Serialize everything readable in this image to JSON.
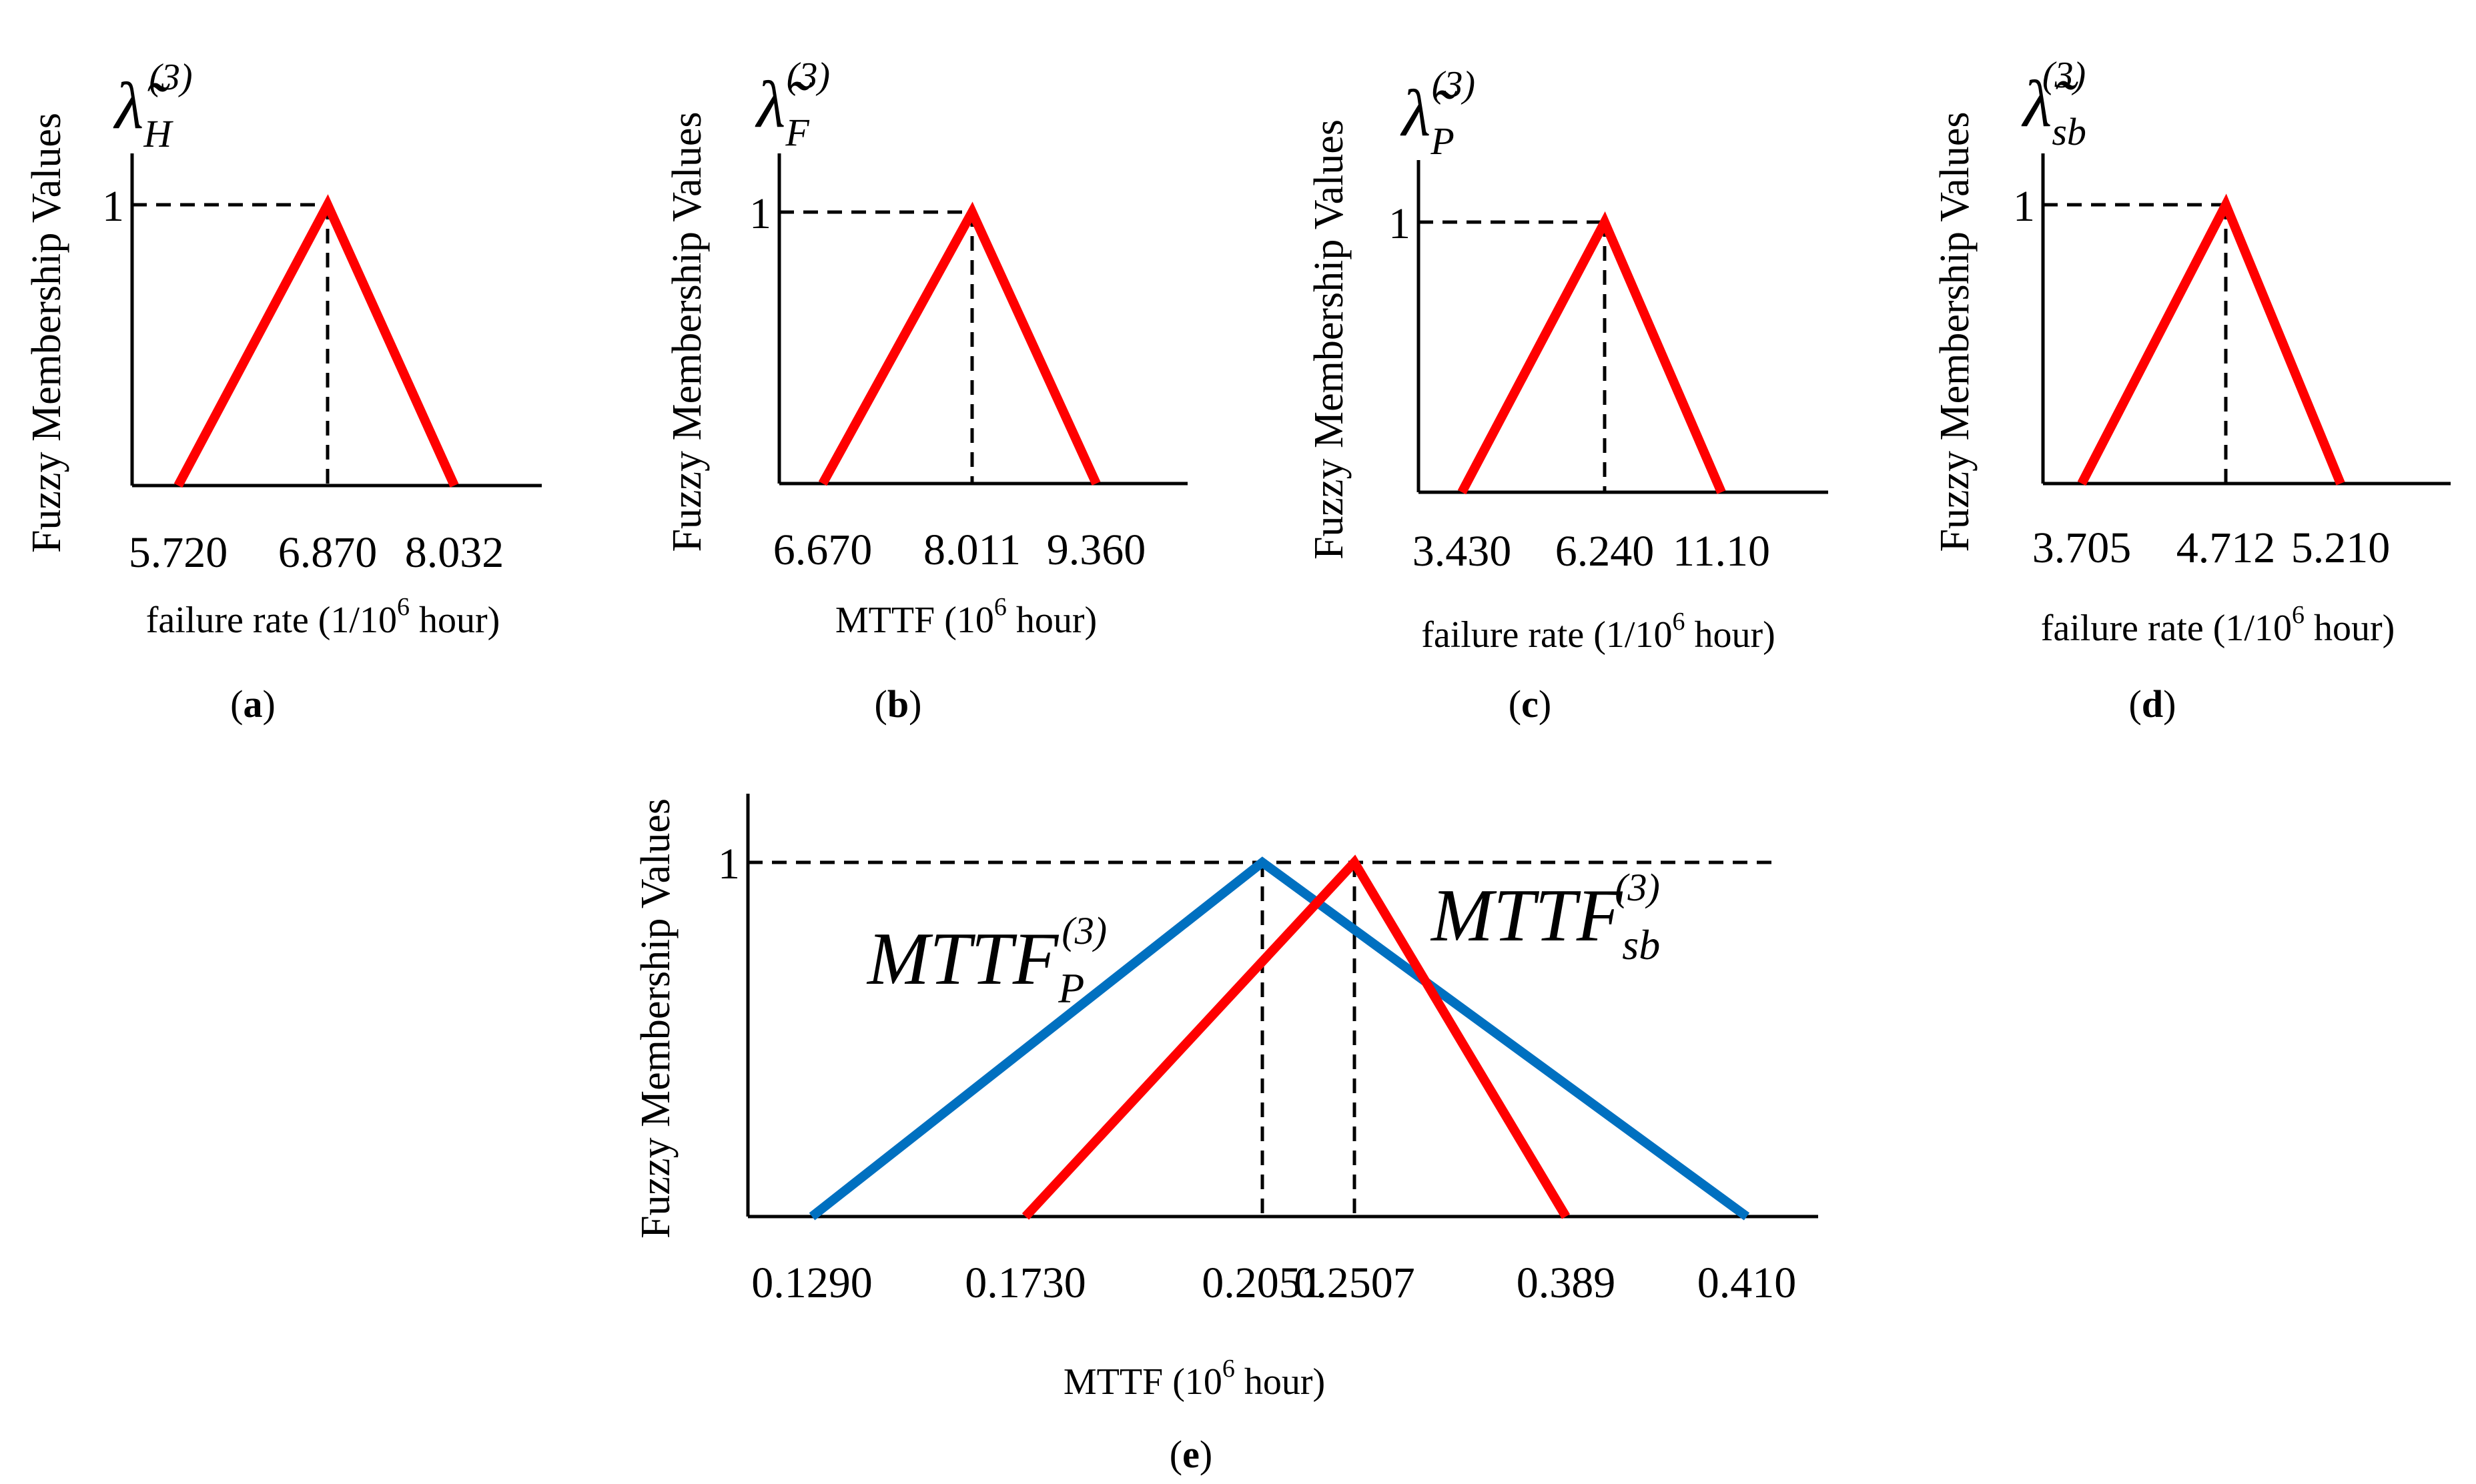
{
  "chart_data": [
    {
      "type": "line",
      "panel_label": "(a)",
      "ylabel": "Fuzzy Membership Values",
      "xlabel": "failure rate (1/10",
      "xlabel_sup": "6",
      "xlabel_end": " hour)",
      "symbol": "λ̃",
      "symbol_sub": "H",
      "symbol_sup": "(3)",
      "y_tick": "1",
      "x_ticks": [
        "5.720",
        "6.870",
        "8.032"
      ],
      "ylim": [
        0,
        1
      ],
      "series": [
        {
          "color": "#ff0000",
          "x": [
            5.72,
            6.87,
            8.032
          ],
          "y": [
            0,
            1,
            0
          ]
        }
      ]
    },
    {
      "type": "line",
      "panel_label": "(b)",
      "ylabel": "Fuzzy Membership Values",
      "xlabel": "MTTF (10",
      "xlabel_sup": "6",
      "xlabel_end": " hour)",
      "symbol": "λ̃",
      "symbol_sub": "F",
      "symbol_sup": "(3)",
      "y_tick": "1",
      "x_ticks": [
        "6.670",
        "8.011",
        "9.360"
      ],
      "ylim": [
        0,
        1
      ],
      "series": [
        {
          "color": "#ff0000",
          "x": [
            6.67,
            8.011,
            9.36
          ],
          "y": [
            0,
            1,
            0
          ]
        }
      ]
    },
    {
      "type": "line",
      "panel_label": "(c)",
      "ylabel": "Fuzzy Membership Values",
      "xlabel": "failure rate (1/10",
      "xlabel_sup": "6",
      "xlabel_end": " hour)",
      "symbol": "λ̃",
      "symbol_sub": "P",
      "symbol_sup": "(3)",
      "y_tick": "1",
      "x_ticks": [
        "3.430",
        "6.240",
        "11.10"
      ],
      "ylim": [
        0,
        1
      ],
      "series": [
        {
          "color": "#ff0000",
          "x": [
            3.43,
            6.24,
            11.1
          ],
          "y": [
            0,
            1,
            0
          ]
        }
      ]
    },
    {
      "type": "line",
      "panel_label": "(d)",
      "ylabel": "Fuzzy Membership Values",
      "xlabel": "failure rate (1/10",
      "xlabel_sup": "6",
      "xlabel_end": " hour)",
      "symbol": "λ̃",
      "symbol_sub": "sb",
      "symbol_sup": "(3)",
      "y_tick": "1",
      "x_ticks": [
        "3.705",
        "4.712",
        "5.210"
      ],
      "ylim": [
        0,
        1
      ],
      "series": [
        {
          "color": "#ff0000",
          "x": [
            3.705,
            4.712,
            5.21
          ],
          "y": [
            0,
            1,
            0
          ]
        }
      ]
    },
    {
      "type": "line",
      "panel_label": "(e)",
      "ylabel": "Fuzzy Membership Values",
      "xlabel": "MTTF (10",
      "xlabel_sup": "6",
      "xlabel_end": " hour)",
      "y_tick": "1",
      "x_ticks": [
        "0.1290",
        "0.1730",
        "0.2051",
        "0.2507",
        "0.389",
        "0.410"
      ],
      "ylim": [
        0,
        1
      ],
      "series": [
        {
          "label": "MTTF",
          "label_sub": "P",
          "label_sup": "(3)",
          "color": "#0070c0",
          "x": [
            0.129,
            0.2051,
            0.41
          ],
          "y": [
            0,
            1,
            0
          ]
        },
        {
          "label": "MTTF",
          "label_sub": "sb",
          "label_sup": "(3)",
          "color": "#ff0000",
          "x": [
            0.173,
            0.2507,
            0.389
          ],
          "y": [
            0,
            1,
            0
          ]
        }
      ]
    }
  ]
}
